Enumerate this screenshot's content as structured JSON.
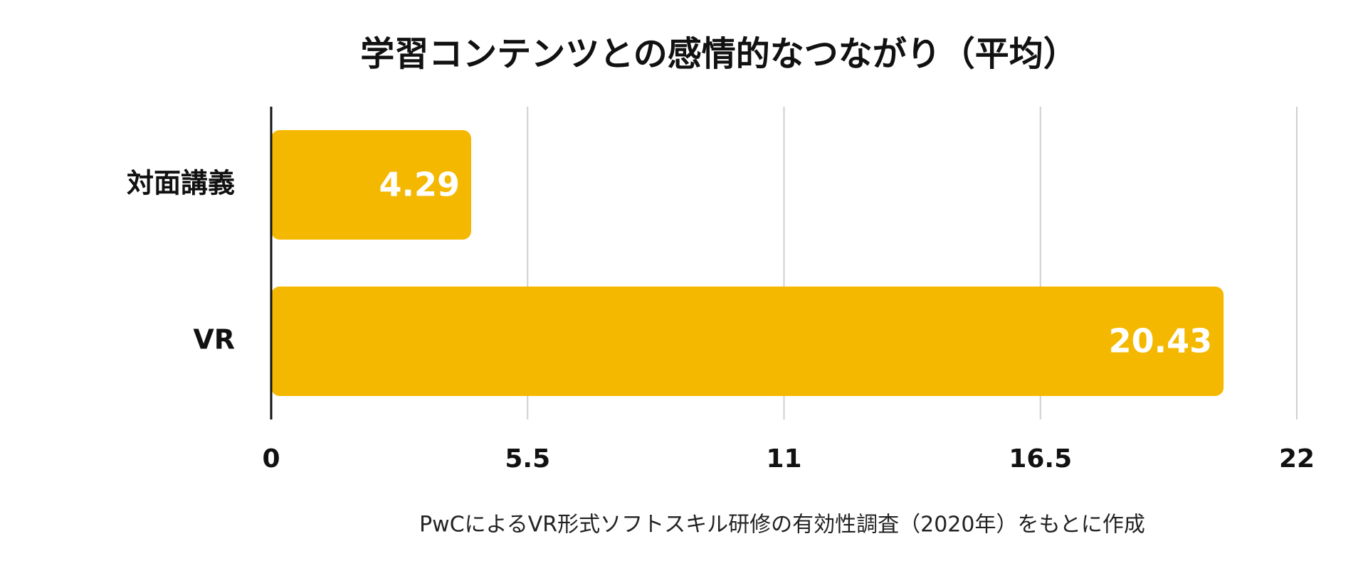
{
  "chart_data": {
    "type": "bar",
    "orientation": "horizontal",
    "title": "学習コンテンツとの感情的なつながり（平均）",
    "categories": [
      "対面講義",
      "VR"
    ],
    "values": [
      4.29,
      20.43
    ],
    "color": "#f5b800",
    "xlim": [
      0,
      22
    ],
    "xticks": [
      0,
      5.5,
      11,
      16.5,
      22
    ],
    "grid": true,
    "note": "PwCによるVR形式ソフトスキル研修の有効性調査（2020年）をもとに作成"
  }
}
